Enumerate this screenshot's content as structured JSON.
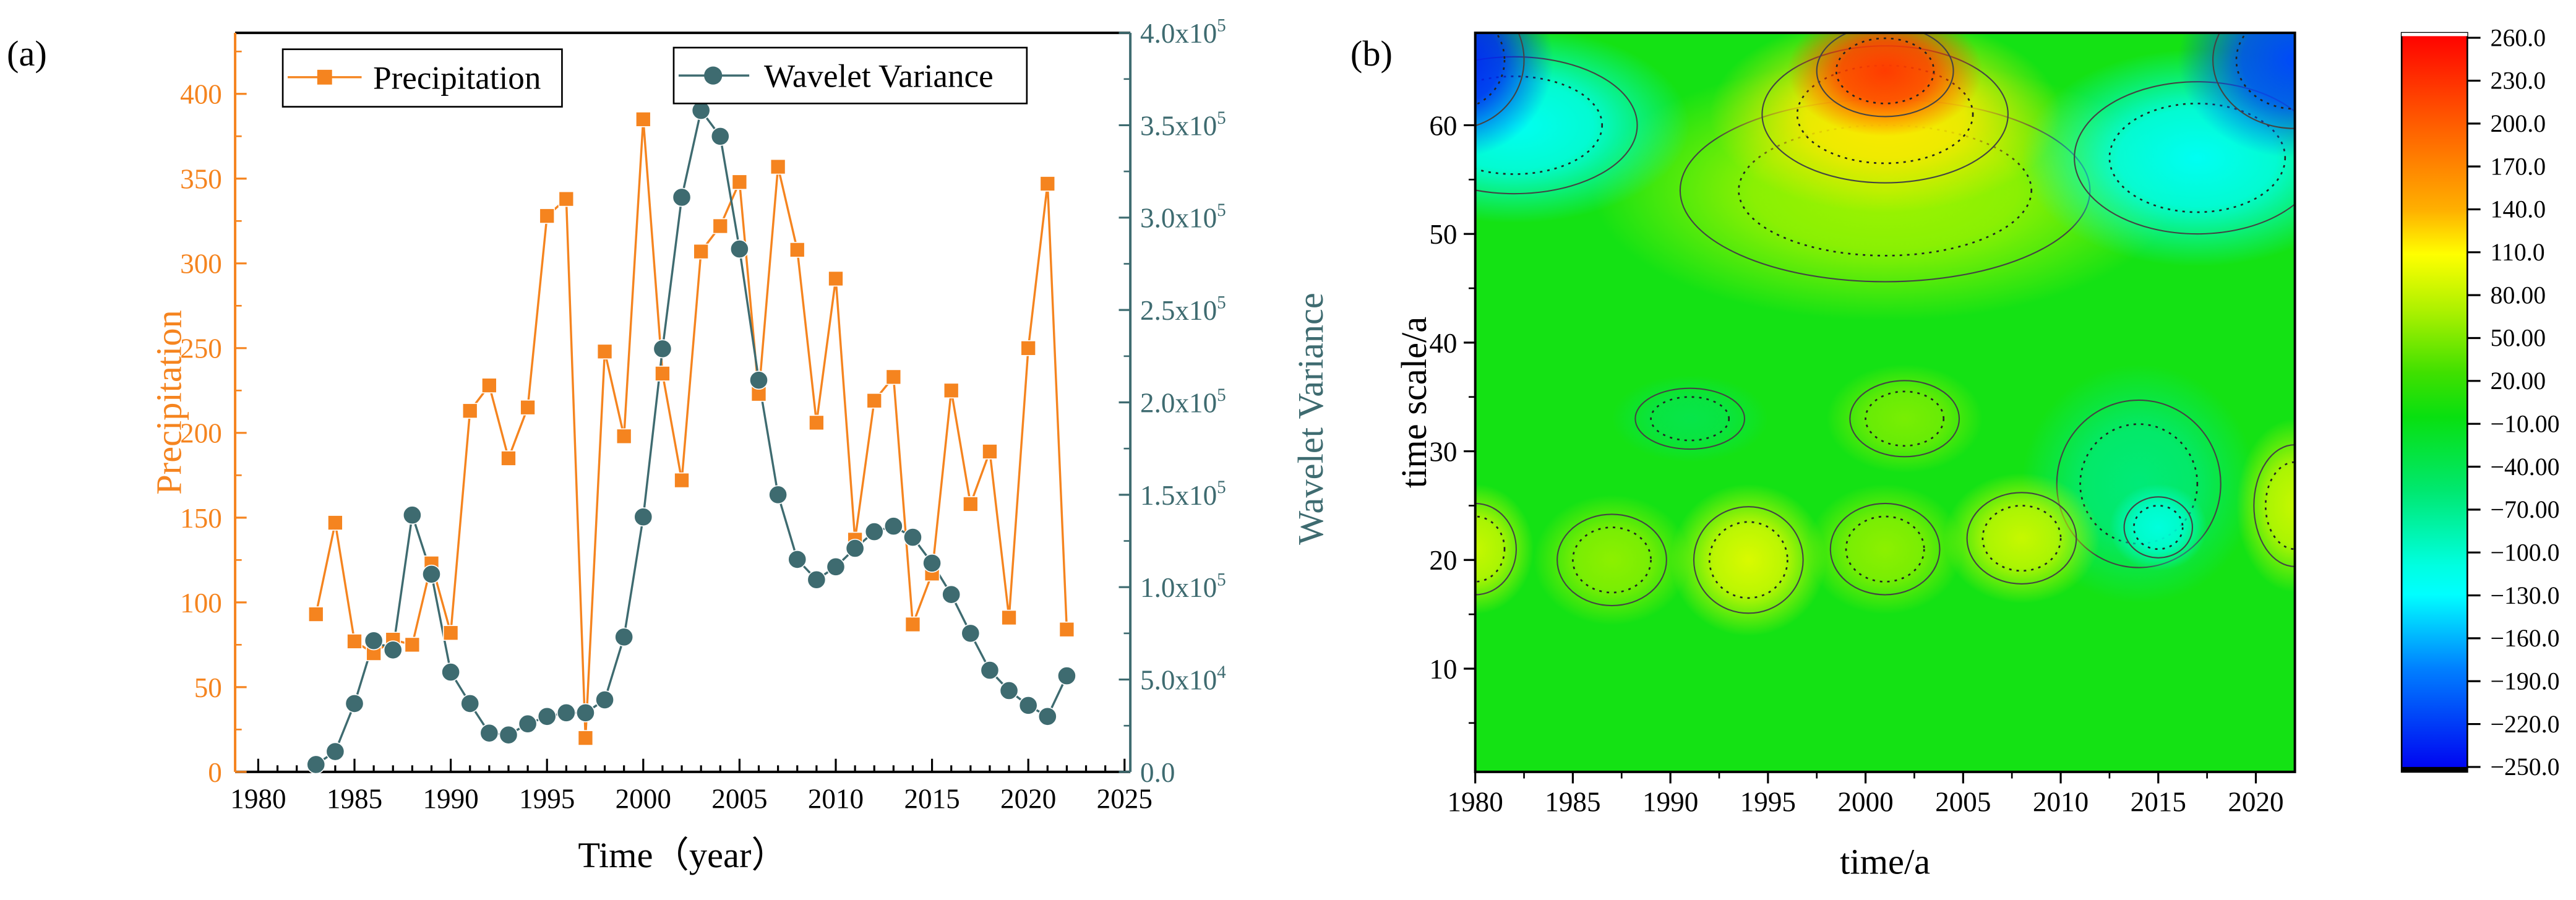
{
  "chart_data": [
    {
      "type": "line",
      "panel_label": "(a)",
      "title": "",
      "xlabel": "Time（year）",
      "ylabel": "Precipitation",
      "y2label": "Wavelet Variance",
      "xlim": [
        1978.8,
        2025.3
      ],
      "ylim": [
        0,
        436
      ],
      "y2lim": [
        0,
        400000
      ],
      "xticks": [
        "1980",
        "1985",
        "1990",
        "1995",
        "2000",
        "2005",
        "2010",
        "2015",
        "2020",
        "2025"
      ],
      "yticks": [
        "0",
        "50",
        "100",
        "150",
        "200",
        "250",
        "300",
        "350",
        "400"
      ],
      "y2ticks": [
        {
          "base": "0.0",
          "exp": ""
        },
        {
          "base": "5.0x10",
          "exp": "4"
        },
        {
          "base": "1.0x10",
          "exp": "5"
        },
        {
          "base": "1.5x10",
          "exp": "5"
        },
        {
          "base": "2.0x10",
          "exp": "5"
        },
        {
          "base": "2.5x10",
          "exp": "5"
        },
        {
          "base": "3.0x10",
          "exp": "5"
        },
        {
          "base": "3.5x10",
          "exp": "5"
        },
        {
          "base": "4.0x10",
          "exp": "5"
        }
      ],
      "legend": [
        "Precipitation",
        "Wavelet Variance"
      ],
      "legend_placement": "top",
      "colors": {
        "precipitation": "#f5841f",
        "wavelet_variance": "#3e6b70"
      },
      "x": [
        1983,
        1984,
        1985,
        1986,
        1987,
        1988,
        1989,
        1990,
        1991,
        1992,
        1993,
        1994,
        1995,
        1996,
        1997,
        1998,
        1999,
        2000,
        2001,
        2002,
        2003,
        2004,
        2005,
        2006,
        2007,
        2008,
        2009,
        2010,
        2011,
        2012,
        2013,
        2014,
        2015,
        2016,
        2017,
        2018,
        2019,
        2020,
        2021,
        2022
      ],
      "series": [
        {
          "name": "Precipitation",
          "axis": "left",
          "values": [
            93,
            147,
            77,
            70,
            78,
            75,
            123,
            82,
            213,
            228,
            185,
            215,
            328,
            338,
            20,
            248,
            198,
            385,
            235,
            172,
            307,
            322,
            348,
            223,
            357,
            308,
            206,
            291,
            137,
            219,
            233,
            87,
            117,
            225,
            158,
            189,
            91,
            250,
            347,
            84
          ]
        },
        {
          "name": "Wavelet Variance",
          "axis": "right",
          "values": [
            4000,
            11000,
            37000,
            71000,
            66000,
            139000,
            107000,
            54000,
            37000,
            21000,
            20000,
            26000,
            30000,
            32000,
            32000,
            39000,
            73000,
            138000,
            229000,
            311000,
            358000,
            344000,
            283000,
            212000,
            150000,
            115000,
            104000,
            111000,
            121000,
            130000,
            133000,
            127000,
            113000,
            96000,
            75000,
            55000,
            44000,
            36000,
            30000,
            52000
          ]
        }
      ]
    },
    {
      "type": "heatmap",
      "panel_label": "(b)",
      "xlabel": "time/a",
      "ylabel": "time scale/a",
      "xlim": [
        1980,
        2022
      ],
      "ylim": [
        0.5,
        68.5
      ],
      "xticks": [
        "1980",
        "1985",
        "1990",
        "1995",
        "2000",
        "2005",
        "2010",
        "2015",
        "2020"
      ],
      "yticks": [
        "10",
        "20",
        "30",
        "40",
        "50",
        "60"
      ],
      "colorbar_ticks": [
        "260.0",
        "230.0",
        "200.0",
        "170.0",
        "140.0",
        "110.0",
        "80.00",
        "50.00",
        "20.00",
        "−10.00",
        "−40.00",
        "−70.00",
        "−100.0",
        "−130.0",
        "−160.0",
        "−190.0",
        "−220.0",
        "−250.0"
      ],
      "colorbar_range": [
        -250,
        260
      ],
      "background_value": 20,
      "features": [
        {
          "year": 2001,
          "scale": 54,
          "value": 90,
          "sx": 15,
          "sy": 12
        },
        {
          "year": 1982,
          "scale": 60,
          "value": -120,
          "sx": 9,
          "sy": 9
        },
        {
          "year": 2017,
          "scale": 57,
          "value": -120,
          "sx": 9,
          "sy": 10
        },
        {
          "year": 2001,
          "scale": 61,
          "value": 150,
          "sx": 9,
          "sy": 9
        },
        {
          "year": 2001,
          "scale": 65,
          "value": 230,
          "sx": 5,
          "sy": 6
        },
        {
          "year": 1979,
          "scale": 66,
          "value": -230,
          "sx": 5,
          "sy": 9
        },
        {
          "year": 2022,
          "scale": 66,
          "value": -210,
          "sx": 6,
          "sy": 9
        },
        {
          "year": 2014,
          "scale": 27,
          "value": -50,
          "sx": 6,
          "sy": 11
        },
        {
          "year": 2015,
          "scale": 23,
          "value": -100,
          "sx": 2.5,
          "sy": 4
        },
        {
          "year": 1980,
          "scale": 21,
          "value": 110,
          "sx": 3,
          "sy": 6
        },
        {
          "year": 1987,
          "scale": 20,
          "value": 80,
          "sx": 4,
          "sy": 6
        },
        {
          "year": 1994,
          "scale": 20,
          "value": 120,
          "sx": 4,
          "sy": 7
        },
        {
          "year": 2001,
          "scale": 21,
          "value": 80,
          "sx": 4,
          "sy": 6
        },
        {
          "year": 2008,
          "scale": 22,
          "value": 110,
          "sx": 4,
          "sy": 6
        },
        {
          "year": 2022,
          "scale": 25,
          "value": 110,
          "sx": 3,
          "sy": 8
        },
        {
          "year": 2002,
          "scale": 33,
          "value": 70,
          "sx": 4,
          "sy": 5
        },
        {
          "year": 1991,
          "scale": 33,
          "value": -20,
          "sx": 4,
          "sy": 4
        }
      ]
    }
  ]
}
